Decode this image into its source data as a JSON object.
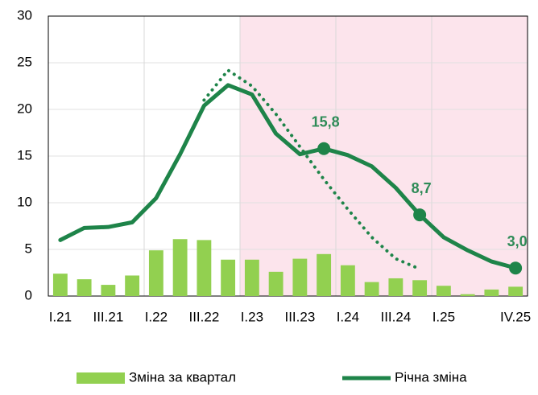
{
  "chart_data": {
    "type": "bar+line",
    "categories": [
      "I.21",
      null,
      "III.21",
      null,
      "I.22",
      null,
      "III.22",
      null,
      "I.23",
      null,
      "III.23",
      null,
      "I.24",
      null,
      "III.24",
      null,
      "I.25",
      null,
      null,
      "IV.25"
    ],
    "series": [
      {
        "name": "Зміна за квартал",
        "type": "bar",
        "color": "#92d050",
        "values": [
          2.4,
          1.8,
          1.2,
          2.2,
          4.9,
          6.1,
          6.0,
          3.9,
          3.9,
          2.6,
          4.0,
          4.5,
          3.3,
          1.5,
          1.9,
          1.7,
          1.1,
          0.2,
          0.7,
          1.0
        ]
      },
      {
        "name": "Річна зміна",
        "type": "line",
        "color": "#1e8449",
        "values": [
          6.0,
          7.3,
          7.4,
          7.9,
          10.5,
          15.2,
          20.4,
          22.6,
          21.6,
          17.4,
          15.2,
          15.8,
          15.1,
          13.9,
          11.6,
          8.7,
          6.3,
          4.9,
          3.7,
          3.0
        ],
        "value_labels": [
          null,
          null,
          null,
          null,
          null,
          null,
          null,
          null,
          null,
          null,
          null,
          "15,8",
          null,
          null,
          null,
          "8,7",
          null,
          null,
          null,
          "3,0"
        ]
      },
      {
        "type": "line",
        "style": "dotted",
        "color": "#1e8449",
        "values": [
          null,
          null,
          null,
          null,
          null,
          null,
          21.0,
          24.2,
          22.5,
          19.5,
          16.0,
          12.5,
          9.3,
          6.3,
          4.0,
          2.9,
          null,
          null,
          null,
          null
        ]
      }
    ],
    "ylim": [
      0,
      30
    ],
    "yticks": [
      0,
      5,
      10,
      15,
      20,
      25,
      30
    ],
    "grid": true,
    "shaded_region": {
      "from": 8,
      "color": "#fce4ec"
    },
    "legend": "bottom"
  }
}
